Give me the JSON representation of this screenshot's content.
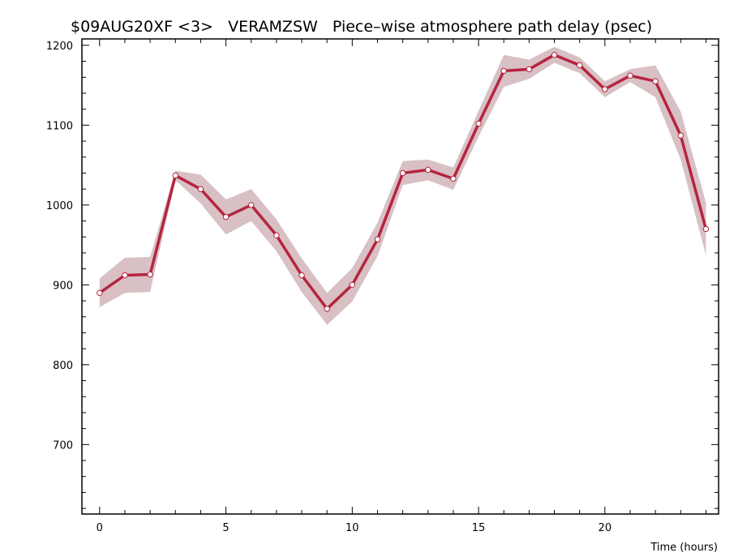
{
  "chart_data": {
    "type": "line",
    "title": "$09AUG20XF <3>   VERAMZSW   Piece–wise atmosphere path delay (psec)",
    "xlabel": "Time (hours)",
    "ylabel": "",
    "xlim": [
      -0.7,
      24.5
    ],
    "ylim": [
      613,
      1208
    ],
    "xticks": [
      "0",
      "5",
      "10",
      "15",
      "20"
    ],
    "yticks": [
      "700",
      "800",
      "900",
      "1000",
      "1100",
      "1200"
    ],
    "grid": false,
    "legend": "none",
    "series": [
      {
        "x": [
          0,
          1,
          2,
          3,
          4,
          5,
          6,
          7,
          8,
          9,
          10,
          11,
          12,
          13,
          14,
          15,
          16,
          17,
          18,
          19,
          20,
          21,
          22,
          23,
          24
        ],
        "y": [
          890,
          912,
          913,
          1037,
          1020,
          985,
          1000,
          962,
          912,
          870,
          900,
          957,
          1040,
          1044,
          1033,
          1102,
          1168,
          1170,
          1188,
          1175,
          1145,
          1162,
          1155,
          1087,
          970
        ],
        "upper": [
          908,
          934,
          935,
          1043,
          1038,
          1007,
          1020,
          982,
          933,
          890,
          921,
          978,
          1055,
          1057,
          1047,
          1118,
          1188,
          1182,
          1198,
          1185,
          1155,
          1170,
          1175,
          1117,
          1003
        ],
        "lower": [
          872,
          890,
          891,
          1031,
          1002,
          963,
          980,
          942,
          891,
          850,
          879,
          936,
          1025,
          1031,
          1019,
          1086,
          1148,
          1158,
          1178,
          1165,
          1135,
          1154,
          1135,
          1057,
          937
        ]
      }
    ],
    "colors": {
      "line": "#b5243f",
      "band": "#d8c0c4",
      "marker_fill": "#ffffff",
      "marker_stroke": "#b5243f",
      "axis": "#000000"
    }
  }
}
